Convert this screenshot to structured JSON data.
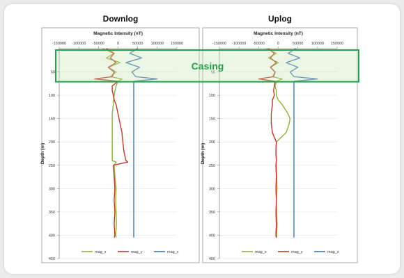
{
  "titles": {
    "left": "Downlog",
    "right": "Uplog"
  },
  "overlay": {
    "label": "Casing",
    "color": "#21a34a"
  },
  "colors": {
    "mag_x": "#8fb23a",
    "mag_y": "#c0392b",
    "mag_z": "#3f77b8",
    "mag_x_casing": "#d4a08f",
    "mag_z_casing": "#9db9d6"
  },
  "chart_data": [
    {
      "type": "line",
      "title": "Downlog",
      "xlabel": "Magnetic Intensity (nT)",
      "ylabel": "Depth (m)",
      "xlim": [
        -150000,
        150000
      ],
      "ylim": [
        0,
        450
      ],
      "x_ticks": [
        "-150000",
        "-100000",
        "-50000",
        "0",
        "50000",
        "100000",
        "150000"
      ],
      "y_ticks": [
        "50",
        "100",
        "150",
        "200",
        "250",
        "300",
        "350",
        "400",
        "450"
      ],
      "casing_depth": [
        0,
        65
      ],
      "legend": [
        "mag_x",
        "mag_y",
        "mag_z"
      ],
      "series": [
        {
          "name": "mag_x",
          "depth": [
            0,
            10,
            20,
            30,
            40,
            50,
            60,
            65,
            70,
            80,
            90,
            100,
            120,
            140,
            150,
            160,
            180,
            200,
            220,
            240,
            243,
            250,
            275,
            300,
            325,
            350,
            375,
            400,
            405
          ],
          "values": [
            -40000,
            -10000,
            -30000,
            5000,
            -25000,
            -5000,
            -20000,
            10000,
            0,
            -5000,
            -8000,
            -10000,
            -12000,
            -15000,
            -15000,
            -15000,
            -15000,
            -15000,
            -15000,
            -15000,
            -5000,
            -10000,
            -8000,
            -5000,
            -6000,
            -5000,
            -4000,
            -6000,
            -5000
          ]
        },
        {
          "name": "mag_y",
          "depth": [
            0,
            10,
            20,
            30,
            40,
            50,
            60,
            65,
            70,
            80,
            90,
            100,
            110,
            120,
            140,
            160,
            180,
            200,
            220,
            240,
            243,
            250,
            275,
            300,
            325,
            350,
            375,
            400,
            405
          ],
          "values": [
            -30000,
            -10000,
            -20000,
            -5000,
            -25000,
            -10000,
            -15000,
            -60000,
            0,
            -15000,
            -15000,
            -12000,
            -10000,
            -5000,
            0,
            5000,
            10000,
            12000,
            15000,
            20000,
            25000,
            -12000,
            -10000,
            -8000,
            -10000,
            -8000,
            -10000,
            -8000,
            -10000
          ]
        },
        {
          "name": "mag_z",
          "depth": [
            0,
            10,
            20,
            30,
            40,
            50,
            60,
            65,
            70,
            80,
            100,
            150,
            200,
            250,
            300,
            350,
            400,
            405
          ],
          "values": [
            50000,
            30000,
            60000,
            20000,
            55000,
            35000,
            45000,
            100000,
            40000,
            40000,
            40000,
            40000,
            40000,
            40000,
            40000,
            40000,
            40000,
            40000
          ]
        }
      ]
    },
    {
      "type": "line",
      "title": "Uplog",
      "xlabel": "Magnetic Intensity (nT)",
      "ylabel": "Depth (m)",
      "xlim": [
        -150000,
        150000
      ],
      "ylim": [
        0,
        450
      ],
      "x_ticks": [
        "-150000",
        "-100000",
        "-50000",
        "0",
        "50000",
        "100000",
        "150000"
      ],
      "y_ticks": [
        "50",
        "100",
        "150",
        "200",
        "250",
        "300",
        "350",
        "400",
        "450"
      ],
      "casing_depth": [
        0,
        65
      ],
      "legend": [
        "mag_x",
        "mag_y",
        "mag_z"
      ],
      "series": [
        {
          "name": "mag_x",
          "depth": [
            0,
            10,
            20,
            30,
            40,
            50,
            60,
            65,
            70,
            80,
            90,
            100,
            110,
            120,
            140,
            150,
            160,
            180,
            200,
            220,
            240,
            250,
            275,
            300,
            325,
            350,
            375,
            400,
            405
          ],
          "values": [
            -30000,
            -5000,
            -25000,
            0,
            -20000,
            -8000,
            -15000,
            10000,
            -5000,
            -8000,
            -5000,
            -5000,
            0,
            10000,
            25000,
            30000,
            28000,
            20000,
            -5000,
            -6000,
            -5000,
            -5000,
            -4000,
            -3000,
            -5000,
            -4000,
            -3000,
            -4000,
            -4000
          ]
        },
        {
          "name": "mag_y",
          "depth": [
            0,
            10,
            20,
            30,
            40,
            50,
            60,
            65,
            70,
            80,
            90,
            100,
            110,
            120,
            140,
            160,
            180,
            200,
            220,
            240,
            250,
            275,
            300,
            325,
            350,
            375,
            400,
            405
          ],
          "values": [
            -25000,
            -10000,
            -20000,
            -5000,
            -20000,
            -8000,
            -12000,
            -50000,
            -8000,
            -10000,
            -12000,
            -10000,
            -15000,
            -15000,
            -18000,
            -18000,
            -15000,
            -5000,
            -6000,
            -5000,
            -6000,
            -5000,
            -6000,
            -5000,
            -6000,
            -5000,
            -6000,
            -5000
          ]
        },
        {
          "name": "mag_z",
          "depth": [
            0,
            10,
            20,
            30,
            40,
            50,
            60,
            65,
            70,
            80,
            100,
            150,
            200,
            250,
            300,
            350,
            400,
            405
          ],
          "values": [
            45000,
            25000,
            55000,
            20000,
            50000,
            30000,
            40000,
            100000,
            40000,
            40000,
            40000,
            40000,
            40000,
            40000,
            40000,
            40000,
            40000,
            40000
          ]
        }
      ]
    }
  ]
}
